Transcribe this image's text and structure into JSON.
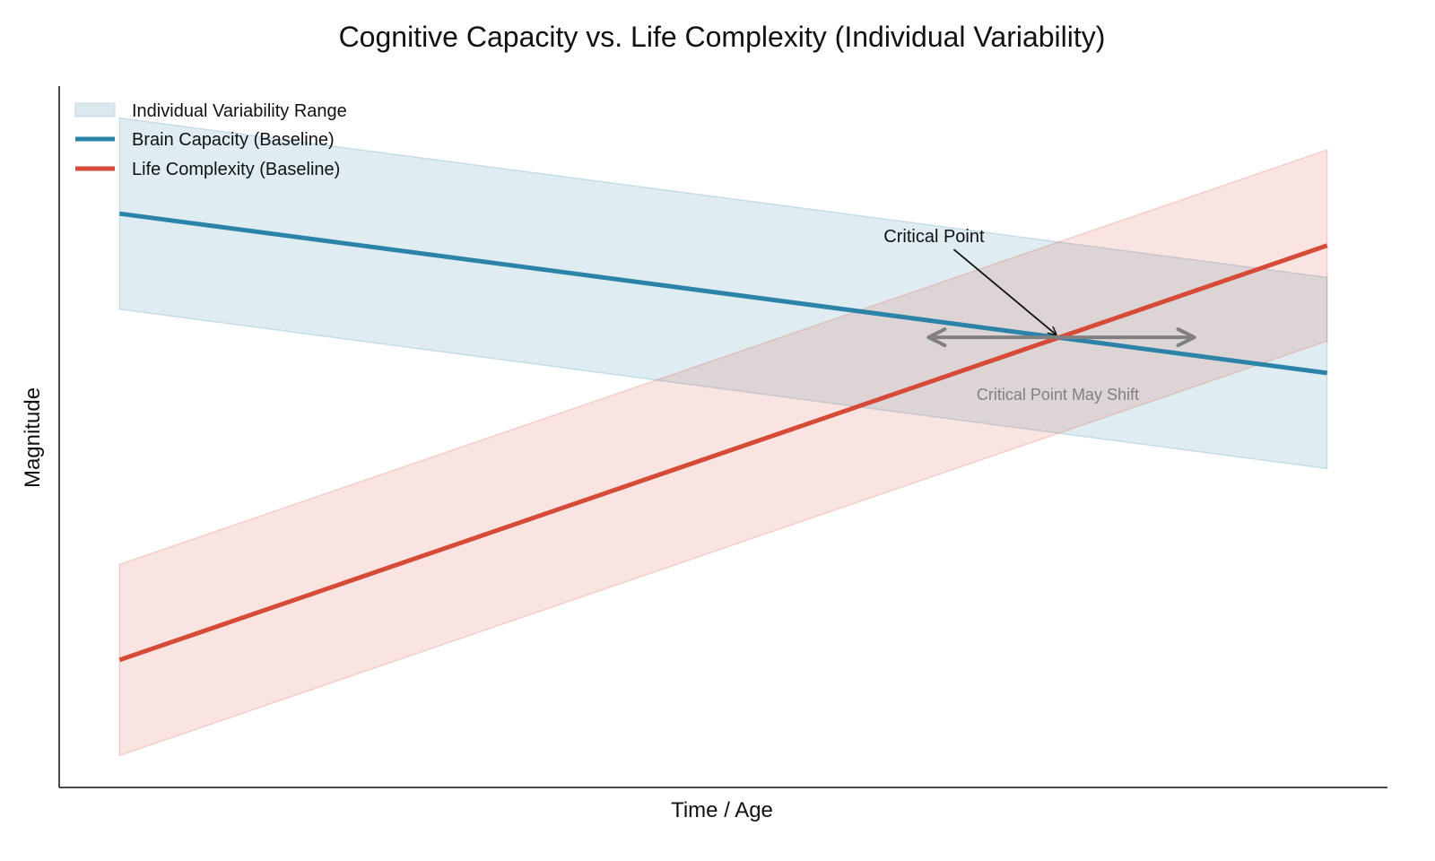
{
  "chart_data": {
    "type": "line",
    "title": "Cognitive Capacity vs. Life Complexity (Individual Variability)",
    "xlabel": "Time / Age",
    "ylabel": "Magnitude",
    "xlim": [
      -0.5,
      10.5
    ],
    "ylim": [
      0,
      11
    ],
    "x_ticks_visible": false,
    "y_ticks_visible": false,
    "grid": false,
    "legend_position": "top-left",
    "legend": {
      "band": "Individual Variability Range",
      "brain": "Brain Capacity (Baseline)",
      "life": "Life Complexity (Baseline)"
    },
    "series": [
      {
        "name": "Brain Capacity (Baseline)",
        "color": "#2b83a8",
        "band_color": "#dbe9ef",
        "x": [
          0,
          10
        ],
        "y": [
          9,
          6.5
        ],
        "band_lower": [
          7.5,
          5
        ],
        "band_upper": [
          10.5,
          8
        ]
      },
      {
        "name": "Life Complexity (Baseline)",
        "color": "#d64a38",
        "band_color": "#f8dbd6",
        "x": [
          0,
          10
        ],
        "y": [
          2,
          8.5
        ],
        "band_lower": [
          0.5,
          7
        ],
        "band_upper": [
          3.5,
          10
        ]
      }
    ],
    "annotations": {
      "critical_point": {
        "text": "Critical Point",
        "x": 7.77,
        "y": 7.06
      },
      "shift": {
        "text": "Critical Point May Shift",
        "x_from": 6.7,
        "x_to": 8.9,
        "y": 7.06,
        "color": "#808080"
      }
    }
  }
}
